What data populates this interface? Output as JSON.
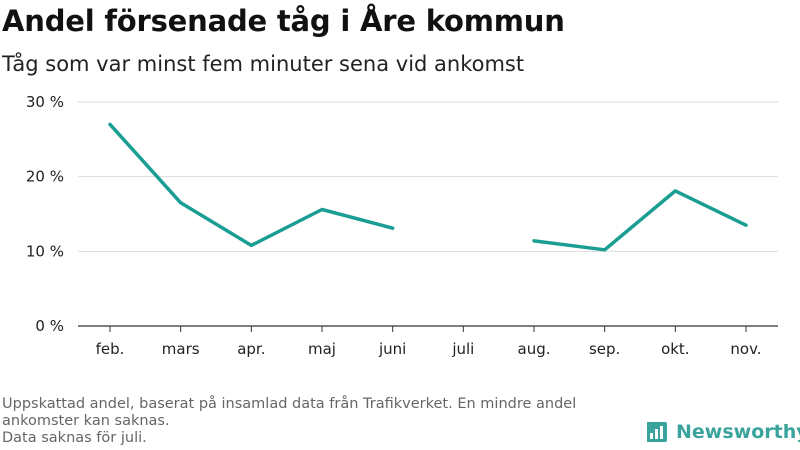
{
  "title": "Andel försenade tåg i Åre kommun",
  "subtitle": "Tåg som var minst fem minuter sena vid ankomst",
  "colors": {
    "line": "#1a9e94",
    "grid": "#dddddd",
    "axis": "#333333",
    "brand": "#3aa39b"
  },
  "chart_data": {
    "type": "line",
    "title": "Andel försenade tåg i Åre kommun",
    "subtitle": "Tåg som var minst fem minuter sena vid ankomst",
    "xlabel": "",
    "ylabel": "",
    "categories": [
      "feb.",
      "mars",
      "apr.",
      "maj",
      "juni",
      "juli",
      "aug.",
      "sep.",
      "okt.",
      "nov."
    ],
    "series": [
      {
        "values": [
          27.0,
          16.5,
          10.8,
          15.6,
          13.1,
          null,
          11.4,
          10.2,
          18.1,
          13.5
        ]
      }
    ],
    "ylim": [
      0,
      30
    ],
    "yticks": [
      0,
      10,
      20,
      30
    ],
    "ytick_labels": [
      "0 %",
      "10 %",
      "20 %",
      "30 %"
    ],
    "grid": true,
    "legend": "none"
  },
  "footnote": {
    "lines": [
      "Uppskattad andel, baserat på insamlad data från Trafikverket. En mindre andel ankomster kan saknas.",
      "Data saknas för juli."
    ]
  },
  "brand": {
    "name": "Newsworthy",
    "icon": "bar-chart-logo-icon"
  }
}
